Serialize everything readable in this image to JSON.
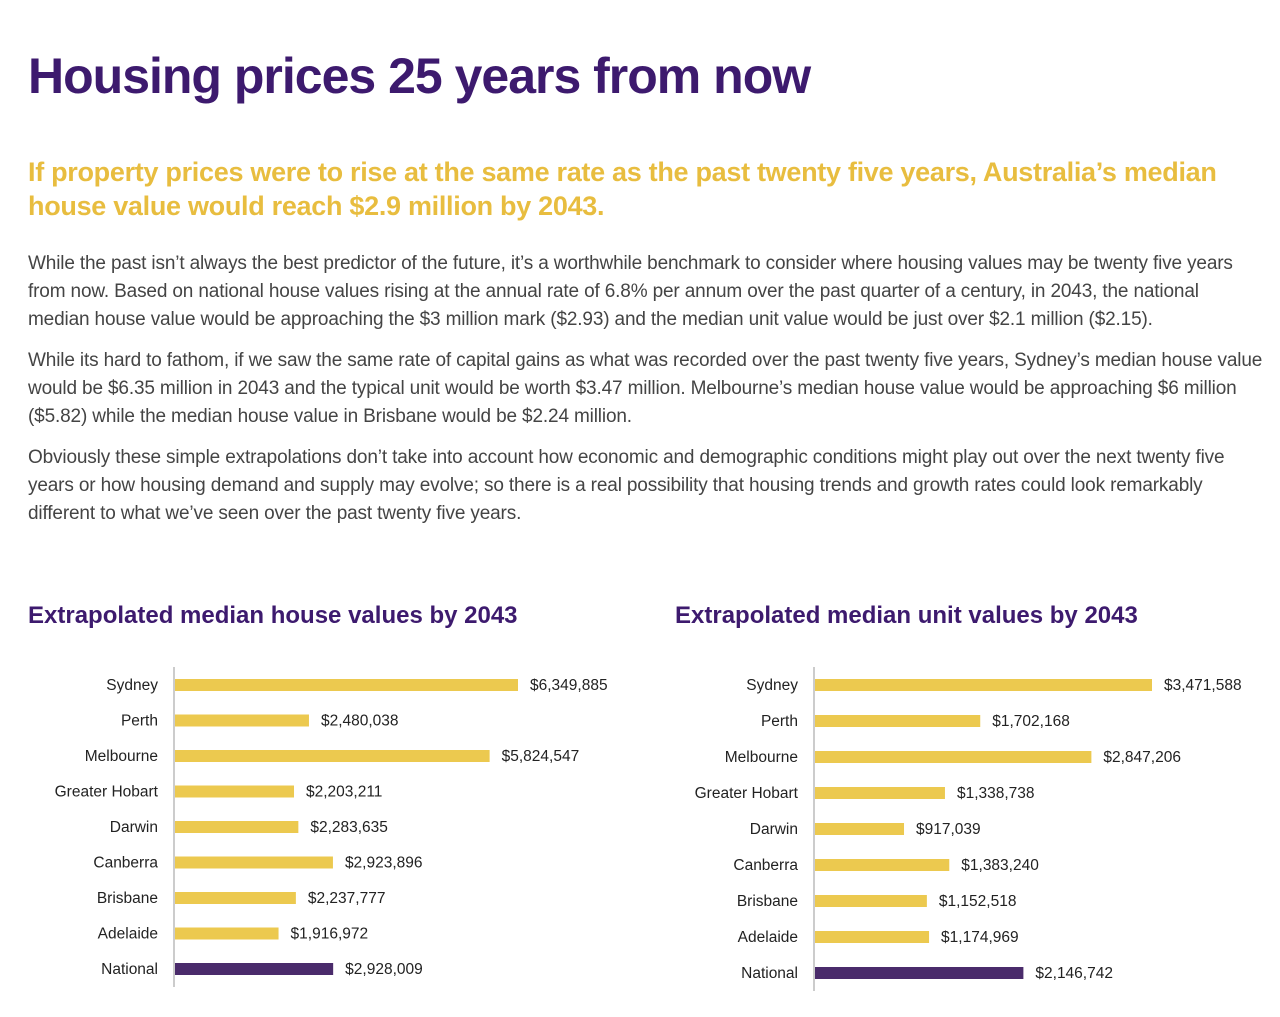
{
  "page": {
    "title": "Housing prices 25 years from now",
    "subtitle": "If property prices were to rise at the same rate as the past twenty five years, Australia’s median house value would reach $2.9 million by 2043.",
    "paragraphs": [
      "While the past isn’t always the best predictor of the future, it’s a worthwhile benchmark to consider where housing values may be twenty five years from now. Based on national house values rising at the annual rate of 6.8% per annum over the past quarter of a century, in 2043, the national median house value would be approaching the $3 million mark ($2.93) and the median unit value would be just over $2.1 million ($2.15).",
      "While its hard to fathom, if we saw the same rate of capital gains as what was recorded over the past twenty five years, Sydney’s median house value would be $6.35 million in 2043 and the typical unit would be worth $3.47 million. Melbourne’s median house value would be approaching $6 million ($5.82) while the median house value in Brisbane would be $2.24 million.",
      "Obviously these simple extrapolations don’t take into account how economic and demographic conditions might play out over the next twenty five years or how housing demand and supply may evolve; so there is a real possibility that housing trends and growth rates could look remarkably different to what we’ve seen over the past twenty five years."
    ]
  },
  "colors": {
    "title": "#3d1a6e",
    "subtitle": "#e8bd3f",
    "bar": "#ecc94f",
    "bar_national": "#4a2b6b",
    "axis": "#999999"
  },
  "chart_data": [
    {
      "type": "bar",
      "orientation": "horizontal",
      "title": "Extrapolated median house values by 2043",
      "categories": [
        "Sydney",
        "Perth",
        "Melbourne",
        "Greater Hobart",
        "Darwin",
        "Canberra",
        "Brisbane",
        "Adelaide",
        "National"
      ],
      "values": [
        6349885,
        2480038,
        5824547,
        2203211,
        2283635,
        2923896,
        2237777,
        1916972,
        2928009
      ],
      "value_labels": [
        "$6,349,885",
        "$2,480,038",
        "$5,824,547",
        "$2,203,211",
        "$2,283,635",
        "$2,923,896",
        "$2,237,777",
        "$1,916,972",
        "$2,928,009"
      ],
      "highlight": "National",
      "xlim": [
        0,
        6349885
      ],
      "grid": false,
      "legend": "none"
    },
    {
      "type": "bar",
      "orientation": "horizontal",
      "title": "Extrapolated median unit values by 2043",
      "categories": [
        "Sydney",
        "Perth",
        "Melbourne",
        "Greater Hobart",
        "Darwin",
        "Canberra",
        "Brisbane",
        "Adelaide",
        "National"
      ],
      "values": [
        3471588,
        1702168,
        2847206,
        1338738,
        917039,
        1383240,
        1152518,
        1174969,
        2146742
      ],
      "value_labels": [
        "$3,471,588",
        "$1,702,168",
        "$2,847,206",
        "$1,338,738",
        "$917,039",
        "$1,383,240",
        "$1,152,518",
        "$1,174,969",
        "$2,146,742"
      ],
      "highlight": "National",
      "xlim": [
        0,
        3471588
      ],
      "grid": false,
      "legend": "none"
    }
  ]
}
